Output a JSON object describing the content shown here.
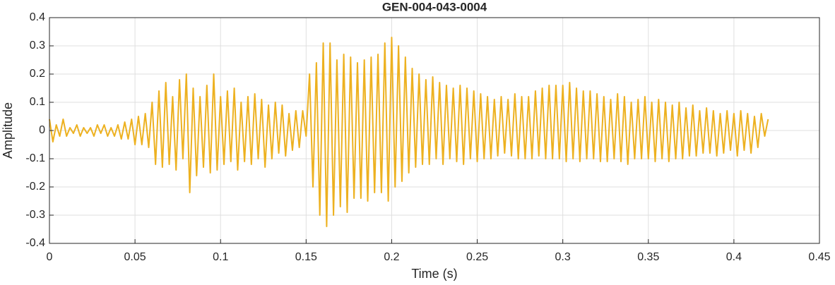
{
  "chart_data": {
    "type": "line",
    "title": "GEN-004-043-0004",
    "x_label": "Time (s)",
    "y_label": "Amplitude",
    "x": [
      0,
      0.002,
      0.004,
      0.006,
      0.008,
      0.01,
      0.012,
      0.014,
      0.016,
      0.018,
      0.02,
      0.022,
      0.024,
      0.026,
      0.028,
      0.03,
      0.032,
      0.034,
      0.036,
      0.038,
      0.04,
      0.042,
      0.044,
      0.046,
      0.048,
      0.05,
      0.052,
      0.054,
      0.056,
      0.058,
      0.06,
      0.062,
      0.064,
      0.066,
      0.068,
      0.07,
      0.072,
      0.074,
      0.076,
      0.078,
      0.08,
      0.082,
      0.084,
      0.086,
      0.088,
      0.09,
      0.092,
      0.094,
      0.096,
      0.098,
      0.1,
      0.102,
      0.104,
      0.106,
      0.108,
      0.11,
      0.112,
      0.114,
      0.116,
      0.118,
      0.12,
      0.122,
      0.124,
      0.126,
      0.128,
      0.13,
      0.132,
      0.134,
      0.136,
      0.138,
      0.14,
      0.142,
      0.144,
      0.146,
      0.148,
      0.15,
      0.152,
      0.154,
      0.156,
      0.158,
      0.16,
      0.162,
      0.164,
      0.166,
      0.168,
      0.17,
      0.172,
      0.174,
      0.176,
      0.178,
      0.18,
      0.182,
      0.184,
      0.186,
      0.188,
      0.19,
      0.192,
      0.194,
      0.196,
      0.198,
      0.2,
      0.202,
      0.204,
      0.206,
      0.208,
      0.21,
      0.212,
      0.214,
      0.216,
      0.218,
      0.22,
      0.222,
      0.224,
      0.226,
      0.228,
      0.23,
      0.232,
      0.234,
      0.236,
      0.238,
      0.24,
      0.242,
      0.244,
      0.246,
      0.248,
      0.25,
      0.252,
      0.254,
      0.256,
      0.258,
      0.26,
      0.262,
      0.264,
      0.266,
      0.268,
      0.27,
      0.272,
      0.274,
      0.276,
      0.278,
      0.28,
      0.282,
      0.284,
      0.286,
      0.288,
      0.29,
      0.292,
      0.294,
      0.296,
      0.298,
      0.3,
      0.302,
      0.304,
      0.306,
      0.308,
      0.31,
      0.312,
      0.314,
      0.316,
      0.318,
      0.32,
      0.322,
      0.324,
      0.326,
      0.328,
      0.33,
      0.332,
      0.334,
      0.336,
      0.338,
      0.34,
      0.342,
      0.344,
      0.346,
      0.348,
      0.35,
      0.352,
      0.354,
      0.356,
      0.358,
      0.36,
      0.362,
      0.364,
      0.366,
      0.368,
      0.37,
      0.372,
      0.374,
      0.376,
      0.378,
      0.38,
      0.382,
      0.384,
      0.386,
      0.388,
      0.39,
      0.392,
      0.394,
      0.396,
      0.398,
      0.4,
      0.402,
      0.404,
      0.406,
      0.408,
      0.41,
      0.412,
      0.414,
      0.416,
      0.418,
      0.42
    ],
    "series": [
      {
        "color": "#EDB120",
        "values": [
          0.04,
          -0.04,
          0.02,
          -0.02,
          0.04,
          -0.02,
          0.01,
          -0.01,
          0.02,
          -0.02,
          0.01,
          -0.01,
          0.01,
          -0.02,
          0.02,
          -0.01,
          0.02,
          -0.02,
          0.01,
          -0.02,
          0.02,
          -0.03,
          0.03,
          -0.03,
          0.04,
          -0.05,
          0.05,
          -0.05,
          0.06,
          -0.06,
          0.1,
          -0.12,
          0.14,
          -0.13,
          0.17,
          -0.12,
          0.12,
          -0.14,
          0.18,
          -0.1,
          0.2,
          -0.22,
          0.15,
          -0.16,
          0.12,
          -0.13,
          0.16,
          -0.15,
          0.2,
          -0.14,
          0.12,
          -0.12,
          0.14,
          -0.11,
          0.15,
          -0.14,
          0.1,
          -0.11,
          0.12,
          -0.12,
          0.13,
          -0.1,
          0.11,
          -0.13,
          0.09,
          -0.1,
          0.1,
          -0.08,
          0.09,
          -0.09,
          0.06,
          -0.07,
          0.07,
          -0.06,
          0.07,
          -0.02,
          0.2,
          -0.2,
          0.24,
          -0.3,
          0.31,
          -0.34,
          0.31,
          -0.3,
          0.25,
          -0.27,
          0.27,
          -0.29,
          0.26,
          -0.24,
          0.24,
          -0.24,
          0.25,
          -0.25,
          0.26,
          -0.22,
          0.27,
          -0.22,
          0.31,
          -0.25,
          0.33,
          -0.2,
          0.3,
          -0.18,
          0.26,
          -0.15,
          0.22,
          -0.13,
          0.2,
          -0.12,
          0.18,
          -0.12,
          0.19,
          -0.1,
          0.17,
          -0.12,
          0.16,
          -0.1,
          0.15,
          -0.11,
          0.16,
          -0.12,
          0.15,
          -0.1,
          0.14,
          -0.11,
          0.13,
          -0.1,
          0.12,
          -0.1,
          0.11,
          -0.09,
          0.12,
          -0.08,
          0.11,
          -0.09,
          0.13,
          -0.1,
          0.12,
          -0.1,
          0.12,
          -0.1,
          0.14,
          -0.09,
          0.15,
          -0.1,
          0.16,
          -0.1,
          0.16,
          -0.1,
          0.16,
          -0.11,
          0.17,
          -0.1,
          0.15,
          -0.11,
          0.14,
          -0.1,
          0.14,
          -0.1,
          0.13,
          -0.11,
          0.12,
          -0.11,
          0.11,
          -0.1,
          0.13,
          -0.11,
          0.12,
          -0.12,
          0.1,
          -0.1,
          0.11,
          -0.1,
          0.12,
          -0.1,
          0.1,
          -0.11,
          0.11,
          -0.1,
          0.1,
          -0.11,
          0.09,
          -0.1,
          0.1,
          -0.1,
          0.08,
          -0.09,
          0.09,
          -0.09,
          0.07,
          -0.08,
          0.08,
          -0.08,
          0.07,
          -0.09,
          0.06,
          -0.08,
          0.07,
          -0.07,
          0.06,
          -0.09,
          0.07,
          -0.07,
          0.06,
          -0.08,
          0.05,
          -0.06,
          0.06,
          -0.02,
          0.04
        ]
      }
    ],
    "xlim": [
      0,
      0.45
    ],
    "xticks": [
      0,
      0.05,
      0.1,
      0.15,
      0.2,
      0.25,
      0.3,
      0.35,
      0.4,
      0.45
    ],
    "ylim": [
      -0.4,
      0.4
    ],
    "yticks": [
      -0.4,
      -0.3,
      -0.2,
      -0.1,
      0,
      0.1,
      0.2,
      0.3,
      0.4
    ],
    "grid": true
  }
}
